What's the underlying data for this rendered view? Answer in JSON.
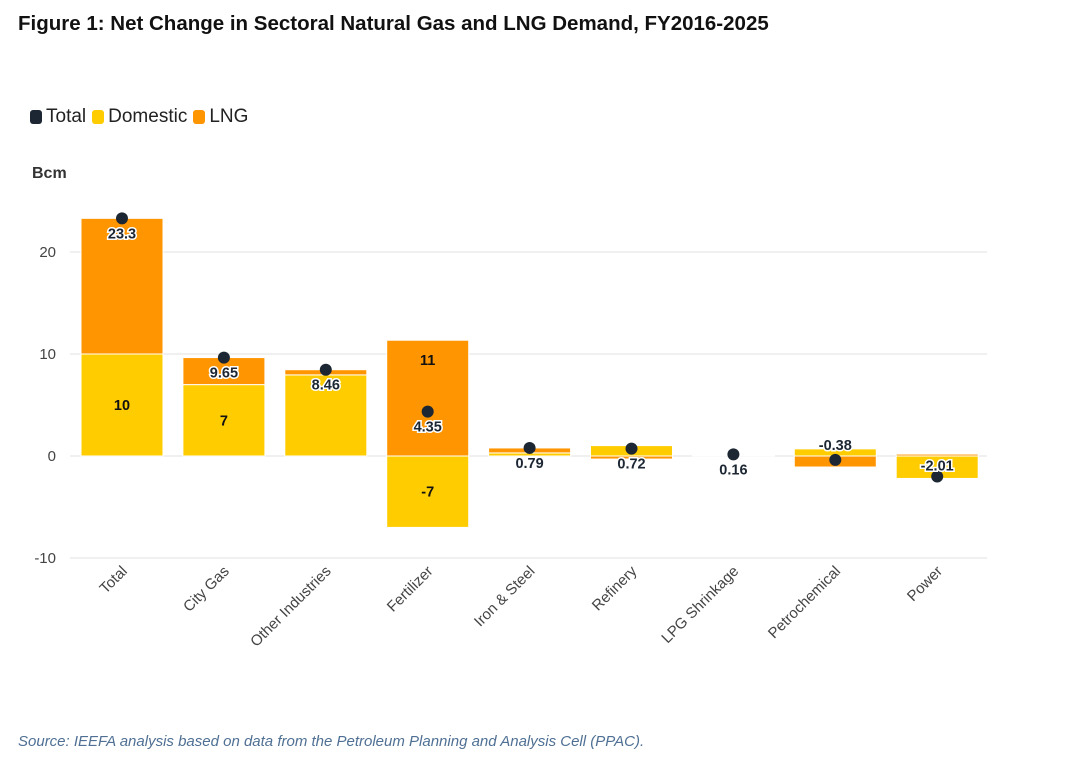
{
  "title": "Figure 1: Net Change in Sectoral Natural Gas and LNG Demand, FY2016-2025",
  "source": "Source: IEEFA analysis based on data from the Petroleum Planning and Analysis Cell (PPAC).",
  "colors": {
    "total": "#1c2733",
    "domestic": "#ffcc00",
    "lng": "#ff9500"
  },
  "chart_data": {
    "type": "bar",
    "stacked": true,
    "title": "Figure 1: Net Change in Sectoral Natural Gas and LNG Demand, FY2016-2025",
    "ylabel": "Bcm",
    "xlabel": "",
    "ylim": [
      -10,
      25
    ],
    "yticks": [
      "-10",
      "0",
      "10",
      "20"
    ],
    "legend": {
      "placement": "top-left",
      "entries": [
        "Total",
        "Domestic",
        "LNG"
      ]
    },
    "categories": [
      "Total",
      "City Gas",
      "Other Industries",
      "Fertilizer",
      "Iron & Steel",
      "Refinery",
      "LPG Shrinkage",
      "Petrochemical",
      "Power"
    ],
    "series": [
      {
        "name": "Domestic",
        "type": "bar",
        "values": [
          10,
          7,
          7.95,
          -7,
          0.3,
          1.02,
          0.08,
          0.7,
          -2.2
        ]
      },
      {
        "name": "LNG",
        "type": "bar",
        "values": [
          13.3,
          2.65,
          0.51,
          11.35,
          0.49,
          -0.3,
          0.08,
          -1.08,
          0.19
        ]
      },
      {
        "name": "Total",
        "type": "scatter",
        "values": [
          23.3,
          9.65,
          8.46,
          4.35,
          0.79,
          0.72,
          0.16,
          -0.38,
          -2.01
        ]
      }
    ],
    "total_labels": [
      "23.3",
      "9.65",
      "8.46",
      "4.35",
      "0.79",
      "0.72",
      "0.16",
      "-0.38",
      "-2.01"
    ],
    "total_label_side": [
      "below",
      "below",
      "below",
      "below",
      "below",
      "below",
      "below",
      "above",
      "above"
    ],
    "segment_labels": [
      {
        "category": "Total",
        "series": "Domestic",
        "text": "10"
      },
      {
        "category": "City Gas",
        "series": "Domestic",
        "text": "7"
      },
      {
        "category": "Fertilizer",
        "series": "LNG",
        "text": "11"
      },
      {
        "category": "Fertilizer",
        "series": "Domestic",
        "text": "-7"
      }
    ],
    "grid": true
  }
}
